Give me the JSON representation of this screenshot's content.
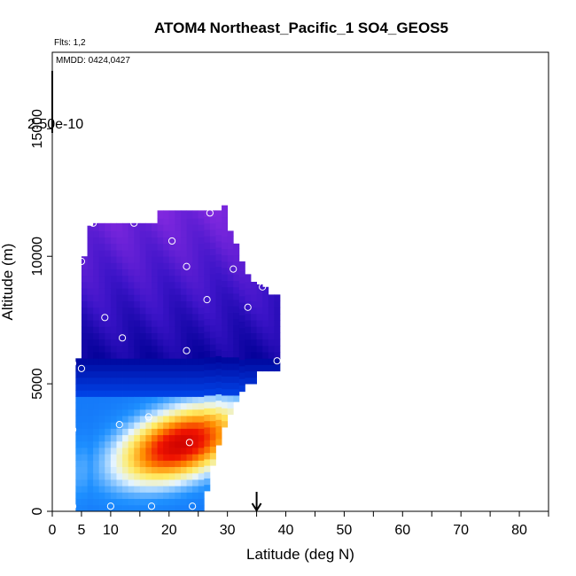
{
  "chart_data": {
    "type": "heatmap",
    "title": "ATOM4 Northeast_Pacific_1 SO4_GEOS5",
    "flights_label": "Flts: 1,2",
    "dates_label": "MMDD: 0424,0427",
    "colorbar_label": "2.50e-10",
    "xlabel": "Latitude (deg N)",
    "ylabel": "Altitude (m)",
    "xlim": [
      0,
      85
    ],
    "ylim": [
      0,
      18000
    ],
    "x_ticks": [
      0,
      5,
      10,
      20,
      30,
      40,
      50,
      60,
      70,
      80
    ],
    "x_minor_ticks": [
      15,
      25,
      35,
      45,
      55,
      65,
      75,
      85
    ],
    "y_ticks": [
      0,
      5000,
      10000,
      15000
    ],
    "marker_arrow_lat": 35,
    "columns": [
      {
        "lat": 4.5,
        "zmax": 6000
      },
      {
        "lat": 5.5,
        "zmax": 10000
      },
      {
        "lat": 6.5,
        "zmax": 11200
      },
      {
        "lat": 7.5,
        "zmax": 11300
      },
      {
        "lat": 8.5,
        "zmax": 11300
      },
      {
        "lat": 9.5,
        "zmax": 11300
      },
      {
        "lat": 10.5,
        "zmax": 11300
      },
      {
        "lat": 11.5,
        "zmax": 11300
      },
      {
        "lat": 12.5,
        "zmax": 11300
      },
      {
        "lat": 13.5,
        "zmax": 11300
      },
      {
        "lat": 14.5,
        "zmax": 11300
      },
      {
        "lat": 15.5,
        "zmax": 11300
      },
      {
        "lat": 16.5,
        "zmax": 11300
      },
      {
        "lat": 17.5,
        "zmax": 11300
      },
      {
        "lat": 18.5,
        "zmax": 11800
      },
      {
        "lat": 19.5,
        "zmax": 11800
      },
      {
        "lat": 20.5,
        "zmax": 11800
      },
      {
        "lat": 21.5,
        "zmax": 11800
      },
      {
        "lat": 22.5,
        "zmax": 11800
      },
      {
        "lat": 23.5,
        "zmax": 11800
      },
      {
        "lat": 24.5,
        "zmax": 11800
      },
      {
        "lat": 25.5,
        "zmax": 11800
      },
      {
        "lat": 26.5,
        "zmax": 11800
      },
      {
        "lat": 27.5,
        "zmax": 11800
      },
      {
        "lat": 28.5,
        "zmax": 11800
      },
      {
        "lat": 29.5,
        "zmax": 12000
      },
      {
        "lat": 30.5,
        "zmax": 11000
      },
      {
        "lat": 31.5,
        "zmax": 10500
      },
      {
        "lat": 32.5,
        "zmax": 9800
      },
      {
        "lat": 33.5,
        "zmax": 9300
      },
      {
        "lat": 34.5,
        "zmax": 9000
      },
      {
        "lat": 35.5,
        "zmax": 8900
      },
      {
        "lat": 36.5,
        "zmax": 8800
      },
      {
        "lat": 37.5,
        "zmax": 8500
      },
      {
        "lat": 38.5,
        "zmax": 8500
      }
    ],
    "bottom_limits": [
      {
        "lat": 4.5,
        "zmin": 0
      },
      {
        "lat": 26.5,
        "zmin": 800
      },
      {
        "lat": 27.5,
        "zmin": 1800
      },
      {
        "lat": 28.5,
        "zmin": 2600
      },
      {
        "lat": 29.5,
        "zmin": 3300
      },
      {
        "lat": 30.5,
        "zmin": 3800
      },
      {
        "lat": 31.5,
        "zmin": 4300
      },
      {
        "lat": 32.5,
        "zmin": 4700
      },
      {
        "lat": 33.5,
        "zmin": 5000
      },
      {
        "lat": 34.5,
        "zmin": 5000
      },
      {
        "lat": 35.5,
        "zmin": 5500
      },
      {
        "lat": 36.5,
        "zmin": 5500
      },
      {
        "lat": 37.5,
        "zmin": 5500
      },
      {
        "lat": 38.5,
        "zmin": 5500
      }
    ],
    "observations": [
      {
        "lat": 3.5,
        "alt": 5800
      },
      {
        "lat": 5.0,
        "alt": 5600
      },
      {
        "lat": 5.0,
        "alt": 9800
      },
      {
        "lat": 7.0,
        "alt": 11300
      },
      {
        "lat": 14.0,
        "alt": 11300
      },
      {
        "lat": 20.5,
        "alt": 10600
      },
      {
        "lat": 27.0,
        "alt": 11700
      },
      {
        "lat": 9.0,
        "alt": 7600
      },
      {
        "lat": 12.0,
        "alt": 6800
      },
      {
        "lat": 23.0,
        "alt": 9600
      },
      {
        "lat": 26.5,
        "alt": 8300
      },
      {
        "lat": 31.0,
        "alt": 9500
      },
      {
        "lat": 36.0,
        "alt": 8800
      },
      {
        "lat": 33.5,
        "alt": 8000
      },
      {
        "lat": 23.0,
        "alt": 6300
      },
      {
        "lat": 38.5,
        "alt": 5900
      },
      {
        "lat": 16.5,
        "alt": 3700
      },
      {
        "lat": 11.5,
        "alt": 3400
      },
      {
        "lat": 3.5,
        "alt": 3200
      },
      {
        "lat": 23.5,
        "alt": 2700
      },
      {
        "lat": 3.5,
        "alt": 200
      },
      {
        "lat": 17.0,
        "alt": 200
      },
      {
        "lat": 24.0,
        "alt": 200
      },
      {
        "lat": 10.0,
        "alt": 200
      }
    ]
  }
}
